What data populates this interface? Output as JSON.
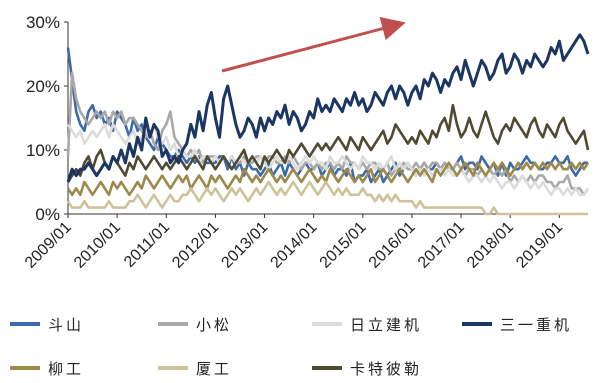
{
  "chart_data": {
    "type": "line",
    "title": "",
    "xlabel": "",
    "ylabel": "",
    "ylim": [
      0,
      30
    ],
    "y_ticks": [
      "0%",
      "10%",
      "20%",
      "30%"
    ],
    "x_ticks": [
      "2009/01",
      "2010/01",
      "2011/01",
      "2012/01",
      "2013/01",
      "2014/01",
      "2015/01",
      "2016/01",
      "2017/01",
      "2018/01",
      "2019/01"
    ],
    "x_range": [
      "2009/01",
      "2019/05"
    ],
    "x_step": "month",
    "legend_position": "bottom",
    "annotations": [
      "upward-trend-arrow"
    ],
    "series": [
      {
        "name": "斗山",
        "color": "#3d6aa8",
        "values": [
          26,
          21,
          16,
          14,
          13,
          16,
          17,
          15,
          16,
          14,
          15,
          13,
          16,
          15,
          14,
          12,
          15,
          13,
          14,
          12,
          11,
          10,
          12,
          11,
          10,
          9,
          9,
          10,
          9,
          8,
          9,
          8,
          9,
          8,
          8,
          8,
          8,
          9,
          9,
          7,
          9,
          7,
          8,
          6,
          8,
          7,
          7,
          6,
          7,
          8,
          6,
          7,
          8,
          6,
          8,
          7,
          6,
          7,
          8,
          7,
          7,
          8,
          6,
          7,
          8,
          6,
          7,
          7,
          6,
          8,
          5,
          6,
          6,
          7,
          5,
          6,
          7,
          5,
          6,
          7,
          8,
          6,
          7,
          8,
          7,
          6,
          7,
          8,
          7,
          7,
          8,
          7,
          8,
          7,
          7,
          8,
          9,
          7,
          8,
          8,
          7,
          9,
          8,
          7,
          8,
          6,
          8,
          6,
          8,
          7,
          7,
          8,
          9,
          8,
          8,
          7,
          7,
          8,
          8,
          9,
          8,
          8,
          9,
          7,
          6,
          7,
          8,
          8
        ]
      },
      {
        "name": "小松",
        "color": "#a8a8a8",
        "values": [
          9,
          22,
          18,
          16,
          15,
          14,
          15,
          16,
          15,
          16,
          14,
          16,
          15,
          16,
          14,
          15,
          15,
          14,
          13,
          12,
          13,
          11,
          10,
          13,
          14,
          16,
          12,
          11,
          10,
          9,
          10,
          9,
          10,
          8,
          9,
          9,
          9,
          8,
          9,
          8,
          9,
          8,
          8,
          9,
          8,
          8,
          9,
          9,
          8,
          9,
          9,
          8,
          8,
          9,
          8,
          9,
          8,
          7,
          8,
          8,
          7,
          8,
          7,
          8,
          8,
          7,
          8,
          7,
          9,
          8,
          8,
          7,
          8,
          7,
          8,
          8,
          7,
          7,
          8,
          6,
          7,
          7,
          8,
          7,
          7,
          8,
          7,
          8,
          7,
          8,
          8,
          7,
          8,
          7,
          7,
          8,
          7,
          6,
          7,
          7,
          6,
          7,
          6,
          7,
          6,
          7,
          6,
          7,
          5,
          6,
          5,
          6,
          5,
          6,
          5,
          6,
          6,
          5,
          5,
          4,
          5,
          5,
          6,
          4,
          4,
          4,
          3,
          4
        ]
      },
      {
        "name": "日立建机",
        "color": "#dcdcdc",
        "values": [
          14,
          13,
          12,
          13,
          11,
          12,
          13,
          12,
          13,
          14,
          12,
          14,
          13,
          12,
          11,
          12,
          13,
          11,
          12,
          13,
          12,
          14,
          12,
          11,
          12,
          10,
          11,
          9,
          10,
          9,
          9,
          10,
          8,
          9,
          9,
          8,
          9,
          8,
          9,
          8,
          9,
          8,
          9,
          8,
          8,
          9,
          8,
          9,
          8,
          7,
          8,
          9,
          8,
          8,
          9,
          8,
          7,
          8,
          9,
          8,
          9,
          8,
          8,
          7,
          9,
          8,
          8,
          9,
          8,
          7,
          8,
          7,
          9,
          8,
          8,
          7,
          8,
          7,
          8,
          9,
          7,
          8,
          7,
          8,
          7,
          6,
          7,
          6,
          7,
          6,
          7,
          7,
          6,
          7,
          6,
          6,
          7,
          6,
          5,
          6,
          6,
          5,
          6,
          5,
          6,
          5,
          4,
          5,
          5,
          4,
          5,
          6,
          5,
          4,
          5,
          4,
          5,
          4,
          3,
          4,
          4,
          3,
          4,
          3,
          4,
          3,
          3,
          4
        ]
      },
      {
        "name": "三一重机",
        "color": "#1c3664",
        "values": [
          5,
          7,
          6,
          7,
          7,
          8,
          7,
          6,
          7,
          8,
          7,
          9,
          8,
          10,
          8,
          11,
          9,
          12,
          10,
          15,
          12,
          14,
          13,
          9,
          10,
          8,
          9,
          8,
          10,
          11,
          14,
          12,
          16,
          13,
          17,
          19,
          15,
          12,
          18,
          20,
          17,
          14,
          12,
          13,
          15,
          14,
          12,
          15,
          13,
          15,
          14,
          16,
          15,
          17,
          14,
          16,
          15,
          13,
          14,
          16,
          15,
          18,
          16,
          17,
          16,
          18,
          17,
          16,
          18,
          17,
          19,
          17,
          18,
          16,
          17,
          19,
          18,
          17,
          19,
          20,
          18,
          20,
          19,
          17,
          19,
          20,
          18,
          21,
          20,
          22,
          21,
          19,
          21,
          20,
          22,
          23,
          21,
          24,
          22,
          20,
          22,
          24,
          23,
          21,
          22,
          24,
          25,
          22,
          23,
          25,
          24,
          22,
          24,
          23,
          25,
          24,
          23,
          24,
          26,
          25,
          27,
          24,
          25,
          26,
          27,
          28,
          27,
          25
        ]
      },
      {
        "name": "柳工",
        "color": "#9c8a4c",
        "values": [
          4,
          3,
          4,
          3,
          5,
          4,
          3,
          4,
          5,
          4,
          3,
          5,
          4,
          5,
          4,
          3,
          4,
          5,
          4,
          6,
          5,
          4,
          5,
          6,
          5,
          4,
          5,
          6,
          5,
          6,
          4,
          5,
          6,
          5,
          4,
          6,
          5,
          6,
          5,
          4,
          5,
          6,
          5,
          7,
          6,
          5,
          6,
          5,
          6,
          7,
          6,
          5,
          6,
          5,
          6,
          7,
          6,
          5,
          6,
          7,
          6,
          5,
          6,
          5,
          7,
          6,
          5,
          6,
          7,
          6,
          5,
          6,
          5,
          6,
          7,
          5,
          6,
          7,
          6,
          5,
          6,
          7,
          6,
          5,
          6,
          7,
          6,
          7,
          6,
          5,
          7,
          6,
          7,
          8,
          7,
          6,
          7,
          8,
          7,
          6,
          8,
          7,
          6,
          7,
          8,
          7,
          8,
          7,
          6,
          7,
          8,
          7,
          8,
          7,
          8,
          7,
          8,
          7,
          8,
          7,
          8,
          7,
          7,
          8,
          7,
          8,
          7,
          8
        ]
      },
      {
        "name": "厦工",
        "color": "#cfc29a",
        "values": [
          2,
          1,
          1,
          1,
          2,
          1,
          1,
          1,
          1,
          1,
          2,
          1,
          1,
          1,
          1,
          2,
          2,
          3,
          2,
          1,
          2,
          3,
          2,
          1,
          2,
          3,
          2,
          2,
          3,
          3,
          4,
          3,
          2,
          3,
          4,
          3,
          4,
          3,
          2,
          3,
          4,
          3,
          4,
          3,
          2,
          3,
          4,
          3,
          4,
          5,
          4,
          3,
          4,
          3,
          4,
          5,
          4,
          3,
          4,
          5,
          4,
          3,
          4,
          5,
          4,
          3,
          4,
          3,
          4,
          3,
          3,
          3,
          4,
          3,
          3,
          2,
          3,
          2,
          3,
          2,
          3,
          2,
          2,
          2,
          2,
          1,
          2,
          1,
          1,
          1,
          1,
          1,
          1,
          1,
          1,
          1,
          1,
          1,
          1,
          1,
          1,
          1,
          0,
          0,
          1,
          0,
          0,
          0,
          0,
          0,
          0,
          0,
          0,
          0,
          0,
          0,
          0,
          0,
          0,
          0,
          0,
          0,
          0,
          0,
          0,
          0,
          0,
          0
        ]
      },
      {
        "name": "卡特彼勒",
        "color": "#4f4a32",
        "values": [
          5,
          6,
          7,
          6,
          8,
          9,
          7,
          9,
          10,
          8,
          7,
          9,
          8,
          7,
          6,
          8,
          7,
          9,
          8,
          7,
          8,
          9,
          8,
          7,
          8,
          7,
          8,
          9,
          8,
          7,
          8,
          9,
          8,
          7,
          9,
          8,
          7,
          8,
          9,
          8,
          7,
          8,
          9,
          10,
          8,
          9,
          8,
          7,
          9,
          8,
          9,
          10,
          9,
          8,
          10,
          9,
          10,
          11,
          10,
          9,
          10,
          11,
          10,
          11,
          10,
          11,
          12,
          11,
          10,
          12,
          11,
          10,
          12,
          11,
          10,
          11,
          12,
          13,
          11,
          12,
          14,
          13,
          12,
          11,
          12,
          11,
          13,
          12,
          11,
          13,
          12,
          14,
          15,
          13,
          17,
          14,
          12,
          13,
          15,
          13,
          12,
          14,
          16,
          14,
          12,
          11,
          13,
          14,
          13,
          15,
          14,
          13,
          12,
          14,
          15,
          13,
          12,
          14,
          13,
          12,
          14,
          15,
          13,
          12,
          11,
          12,
          13,
          10
        ]
      }
    ]
  }
}
